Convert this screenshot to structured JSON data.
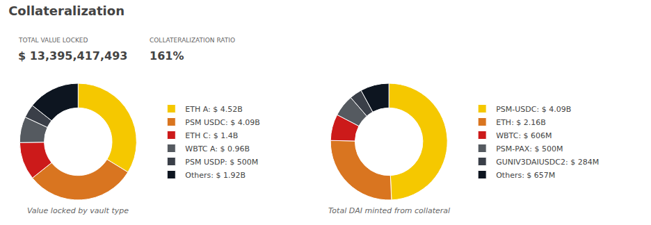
{
  "title": "Collateralization",
  "annotations": [
    "TOTAL VALUE LOCKED",
    "$ 13,395,417,493",
    "COLLATERALIZATION RATIO",
    "161%"
  ],
  "chart_data": [
    {
      "type": "pie",
      "subtitle": "Value locked by vault type",
      "categories": [
        "ETH A: $ 4.52B",
        "PSM USDC: $ 4.09B",
        "ETH C: $ 1.4B",
        "WBTC A: $ 0.96B",
        "PSM USDP: $ 500M",
        "Others: $ 1.92B"
      ],
      "values": [
        4.52,
        4.09,
        1.4,
        0.96,
        0.5,
        1.92
      ],
      "colors": [
        "#f5c800",
        "#d97520",
        "#cc1a1a",
        "#555a60",
        "#3a3f48",
        "#0d1520"
      ],
      "legend": "right"
    },
    {
      "type": "pie",
      "subtitle": "Total DAI minted from collateral",
      "categories": [
        "PSM-USDC: $ 4.09B",
        "ETH: $ 2.16B",
        "WBTC: $ 606M",
        "PSM-PAX: $ 500M",
        "GUNIV3DAIUSDC2: $ 284M",
        "Others: $ 657M"
      ],
      "values": [
        4.09,
        2.16,
        0.606,
        0.5,
        0.284,
        0.657
      ],
      "colors": [
        "#f5c800",
        "#d97520",
        "#cc1a1a",
        "#555a60",
        "#3a3f48",
        "#0d1520"
      ],
      "legend": "right"
    }
  ]
}
